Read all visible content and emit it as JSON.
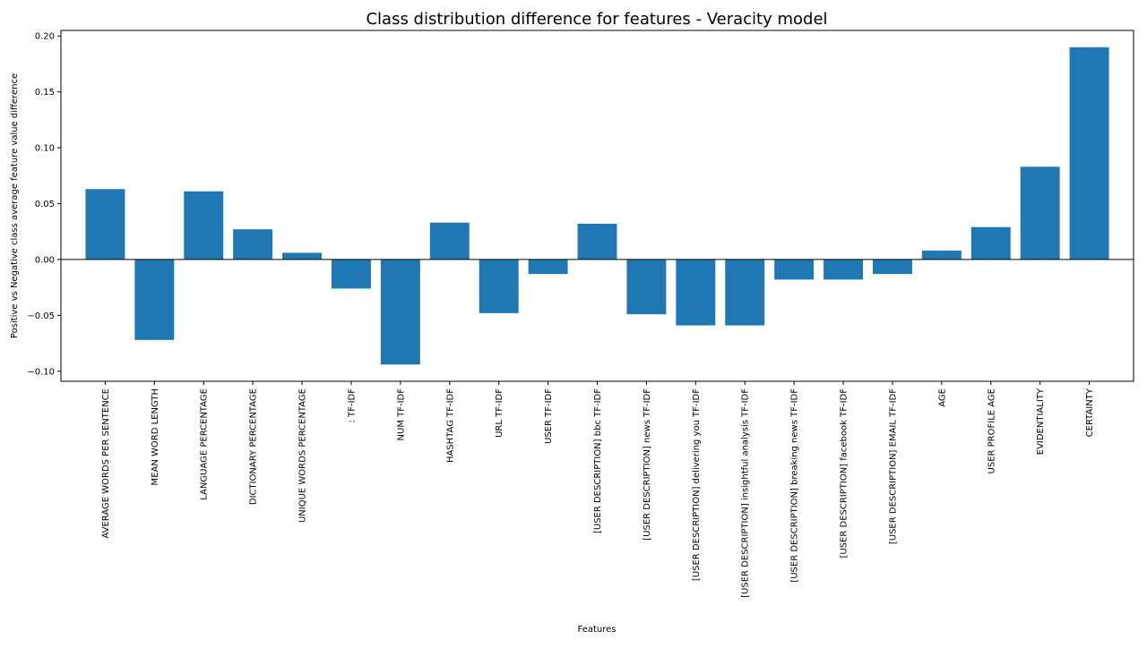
{
  "chart_data": {
    "type": "bar",
    "title": "Class distribution difference for features - Veracity model",
    "xlabel": "Features",
    "ylabel": "Positive vs Negative class average feature value difference",
    "ylim": [
      -0.109,
      0.205
    ],
    "yticks": [
      -0.1,
      -0.05,
      0.0,
      0.05,
      0.1,
      0.15,
      0.2
    ],
    "ytick_labels": [
      "−0.10",
      "−0.05",
      "0.00",
      "0.05",
      "0.10",
      "0.15",
      "0.20"
    ],
    "grid": false,
    "zero_line": true,
    "bar_color": "#1f77b4",
    "categories": [
      "AVERAGE WORDS PER SENTENCE",
      "MEAN WORD LENGTH",
      "LANGUAGE PERCENTAGE",
      "DICTIONARY PERCENTAGE",
      "UNIQUE WORDS PERCENTAGE",
      ": TF-IDF",
      "NUM TF-IDF",
      "HASHTAG TF-IDF",
      "URL TF-IDF",
      "USER TF-IDF",
      "[USER DESCRIPTION] bbc TF-IDF",
      "[USER DESCRIPTION] news TF-IDF",
      "[USER DESCRIPTION] delivering you TF-IDF",
      "[USER DESCRIPTION] insightful analysis TF-IDF",
      "[USER DESCRIPTION] breaking news TF-IDF",
      "[USER DESCRIPTION] facebook TF-IDF",
      "[USER DESCRIPTION] EMAIL TF-IDF",
      "AGE",
      "USER PROFILE AGE",
      "EVIDENTIALITY",
      "CERTAINTY"
    ],
    "values": [
      0.063,
      -0.072,
      0.061,
      0.027,
      0.006,
      -0.026,
      -0.094,
      0.033,
      -0.048,
      -0.013,
      0.032,
      -0.049,
      -0.059,
      -0.059,
      -0.018,
      -0.018,
      -0.013,
      0.008,
      0.029,
      0.083,
      0.19
    ]
  }
}
